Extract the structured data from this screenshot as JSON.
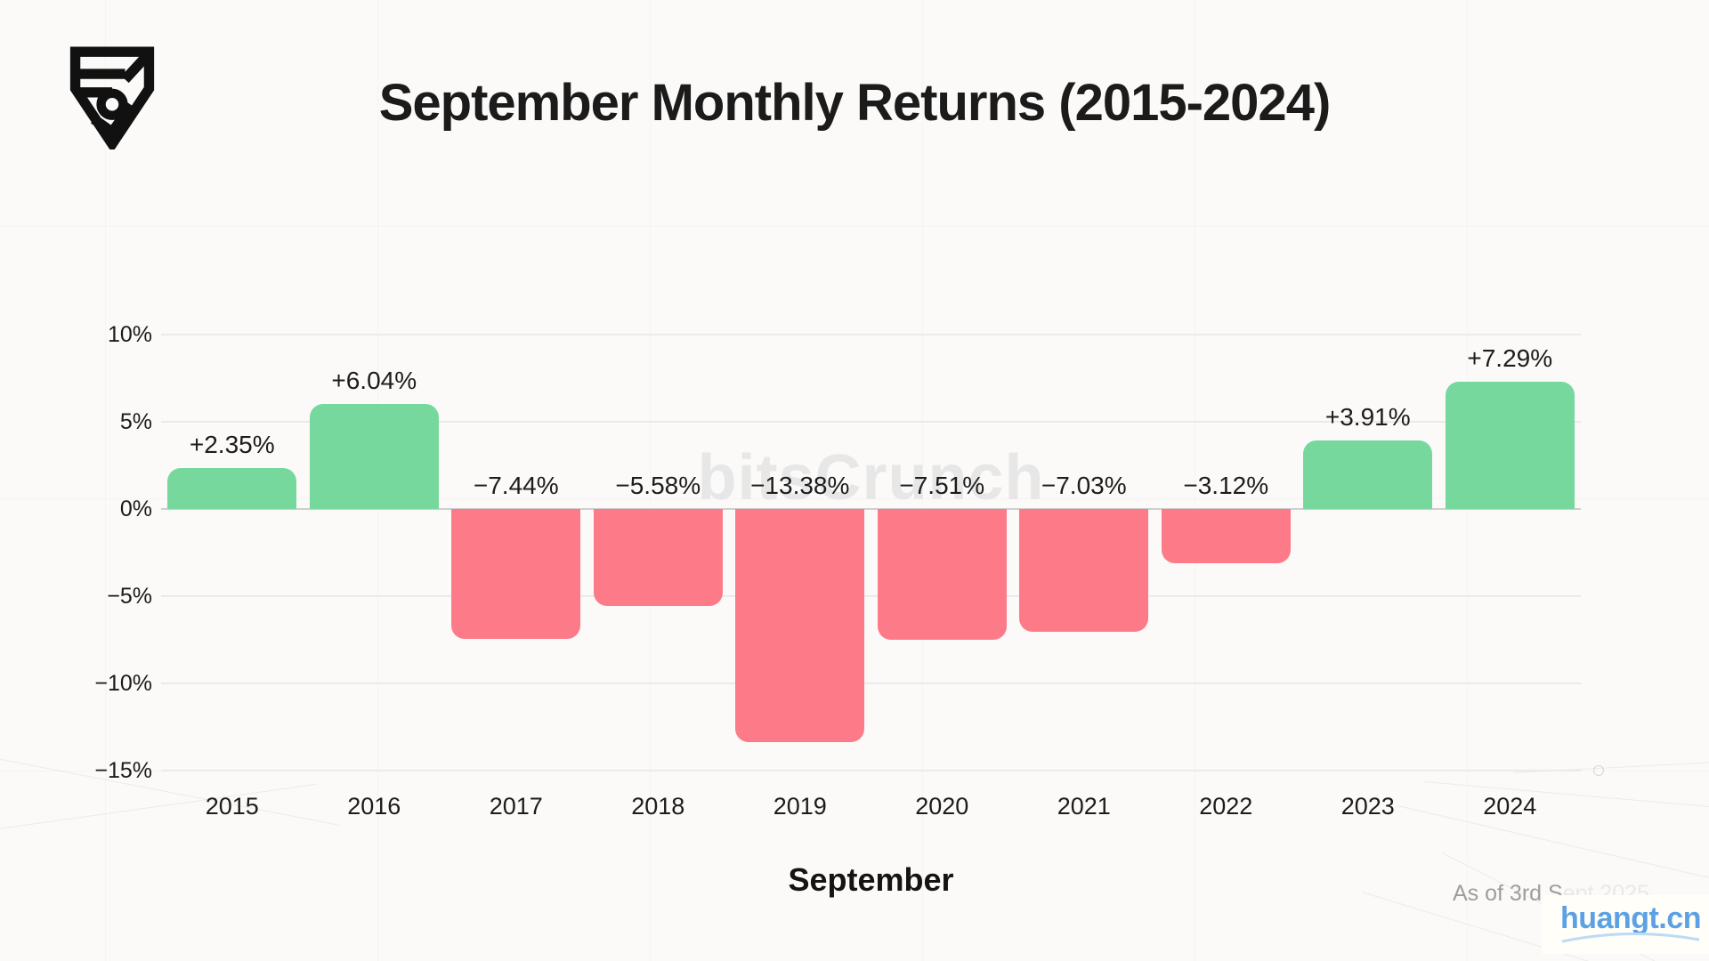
{
  "header": {
    "logo_icon": "bitscrunch-shield-logo"
  },
  "chart_data": {
    "type": "bar",
    "title": "September Monthly Returns (2015-2024)",
    "categories": [
      "2015",
      "2016",
      "2017",
      "2018",
      "2019",
      "2020",
      "2021",
      "2022",
      "2023",
      "2024"
    ],
    "values": [
      2.35,
      6.04,
      -7.44,
      -5.58,
      -13.38,
      -7.51,
      -7.03,
      -3.12,
      3.91,
      7.29
    ],
    "value_labels": [
      "+2.35%",
      "+6.04%",
      "−7.44%",
      "−5.58%",
      "−13.38%",
      "−7.51%",
      "−7.03%",
      "−3.12%",
      "+3.91%",
      "+7.29%"
    ],
    "xlabel": "September",
    "ylabel": "",
    "ylim": [
      -15,
      10
    ],
    "yticks": [
      {
        "value": 10,
        "label": "10%"
      },
      {
        "value": 5,
        "label": "5%"
      },
      {
        "value": 0,
        "label": "0%"
      },
      {
        "value": -5,
        "label": "−5%"
      },
      {
        "value": -10,
        "label": "−10%"
      },
      {
        "value": -15,
        "label": "−15%"
      }
    ],
    "grid": true,
    "legend": false,
    "positive_color": "#77d89e",
    "negative_color": "#fd7b89"
  },
  "watermark": {
    "center_text": "bitsCrunch",
    "corner_text": "huangt.cn",
    "corner_color": "#5ba1e4"
  },
  "footer": {
    "as_of_visible": "As of 3rd S",
    "as_of_faded": "ept 2025"
  }
}
